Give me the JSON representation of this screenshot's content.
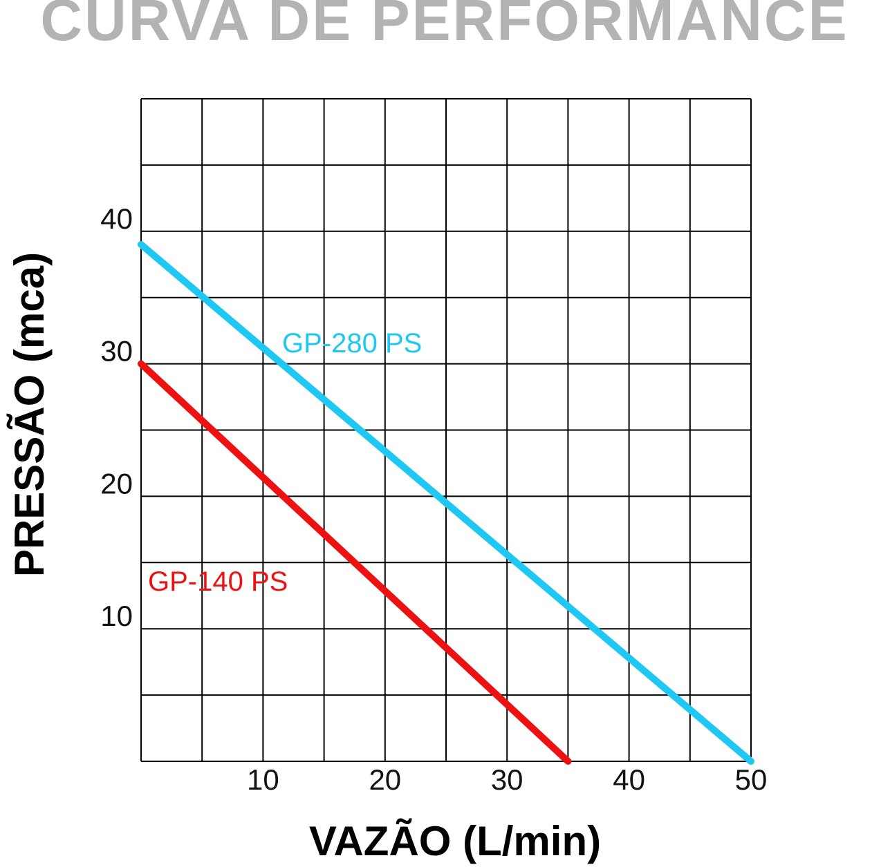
{
  "chart_data": {
    "type": "line",
    "title": "CURVA DE PERFORMANCE",
    "xlabel": "VAZÃO (L/min)",
    "ylabel": "PRESSÃO (mca)",
    "xlim": [
      0,
      50
    ],
    "ylim": [
      0,
      50
    ],
    "x_ticks": [
      "10",
      "20",
      "30",
      "40",
      "50"
    ],
    "y_ticks": [
      "10",
      "20",
      "30",
      "40"
    ],
    "grid": true,
    "series": [
      {
        "name": "GP-280 PS",
        "color": "#1ec8f2",
        "points": [
          [
            0,
            39
          ],
          [
            50,
            0
          ]
        ]
      },
      {
        "name": "GP-140 PS",
        "color": "#ee1111",
        "points": [
          [
            0,
            30
          ],
          [
            35,
            0
          ]
        ]
      }
    ]
  }
}
